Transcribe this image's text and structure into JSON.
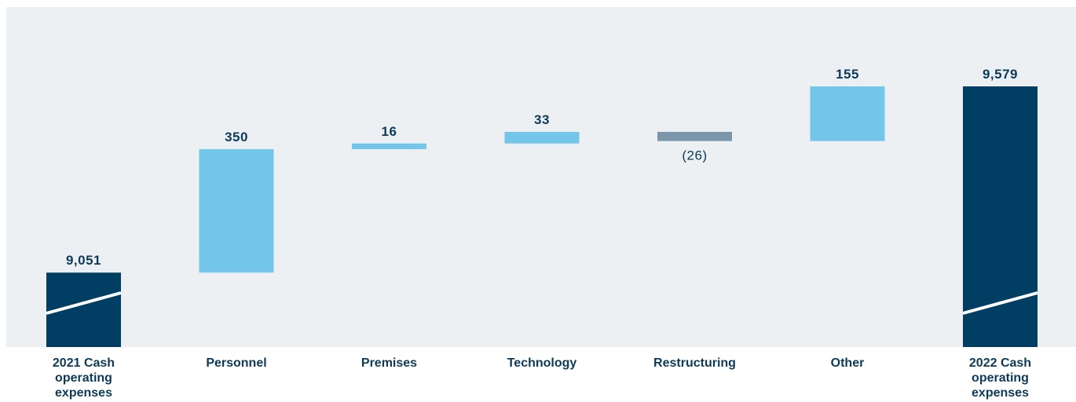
{
  "colors": {
    "plot_background": "#ecf0f2",
    "total": "#003f63",
    "increase": "#73c6ea",
    "decrease": "#7b96aa",
    "text": "#0e3a57",
    "break_mark": "#ffffff"
  },
  "chart_data": {
    "type": "waterfall",
    "title": "",
    "xlabel": "",
    "ylabel": "",
    "axis_break_on_totals": true,
    "categories": [
      "2021 Cash operating expenses",
      "Personnel",
      "Premises",
      "Technology",
      "Restructuring",
      "Other",
      "2022 Cash operating expenses"
    ],
    "category_labels": [
      [
        "2021 Cash",
        "operating",
        "expenses"
      ],
      [
        "Personnel"
      ],
      [
        "Premises"
      ],
      [
        "Technology"
      ],
      [
        "Restructuring"
      ],
      [
        "Other"
      ],
      [
        "2022 Cash",
        "operating",
        "expenses"
      ]
    ],
    "values": [
      9051,
      350,
      16,
      33,
      -26,
      155,
      9579
    ],
    "kinds": [
      "total",
      "increase",
      "increase",
      "increase",
      "decrease",
      "increase",
      "total"
    ],
    "data_labels": [
      "9,051",
      "350",
      "16",
      "33",
      "(26)",
      "155",
      "9,579"
    ],
    "ylim": [
      8840,
      9579
    ]
  }
}
